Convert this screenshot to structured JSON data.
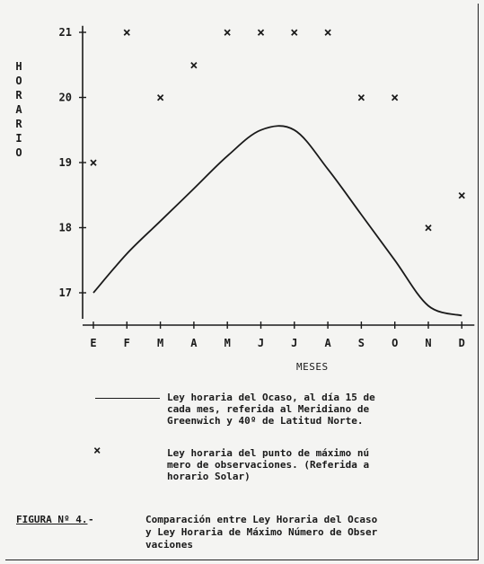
{
  "chart_data": {
    "type": "line",
    "title": "",
    "ylabel": "HORARIO",
    "xlabel": "MESES",
    "categories": [
      "E",
      "F",
      "M",
      "A",
      "M",
      "J",
      "J",
      "A",
      "S",
      "O",
      "N",
      "D"
    ],
    "yticks": [
      "17",
      "18",
      "19",
      "20",
      "21"
    ],
    "ylim": [
      16.6,
      21.1
    ],
    "grid": false,
    "series": [
      {
        "name": "Ley horaria del Ocaso, al día 15 de cada mes, referida al Meridiano de Greenwich y 40º de Latitud Norte.",
        "style": "line",
        "values": [
          17.0,
          17.6,
          18.1,
          18.6,
          19.1,
          19.5,
          19.5,
          18.9,
          18.2,
          17.5,
          16.8,
          16.65
        ]
      },
      {
        "name": "Ley horaria del punto de máximo número de observaciones. (Referida a horario Solar)",
        "style": "x-marker",
        "values": [
          19.0,
          21.0,
          20.0,
          20.5,
          21.0,
          21.0,
          21.0,
          21.0,
          20.0,
          20.0,
          18.0,
          18.5
        ]
      }
    ]
  },
  "legend": {
    "line_text": "Ley horaria del Ocaso, al día 15 de\ncada mes, referida al Meridiano de\nGreenwich y 40º de Latitud Norte.",
    "marker_symbol": "×",
    "marker_text": "Ley horaria del punto de máximo nú\nmero de observaciones. (Referida a\nhorario Solar)"
  },
  "caption": {
    "label": "FIGURA Nº 4.",
    "separator": "-",
    "text": "Comparación entre Ley Horaria del Ocaso\ny Ley Horaria de Máximo Número de Obser\nvaciones"
  },
  "colors": {
    "ink": "#1a1a1a",
    "paper": "#f4f4f2"
  }
}
